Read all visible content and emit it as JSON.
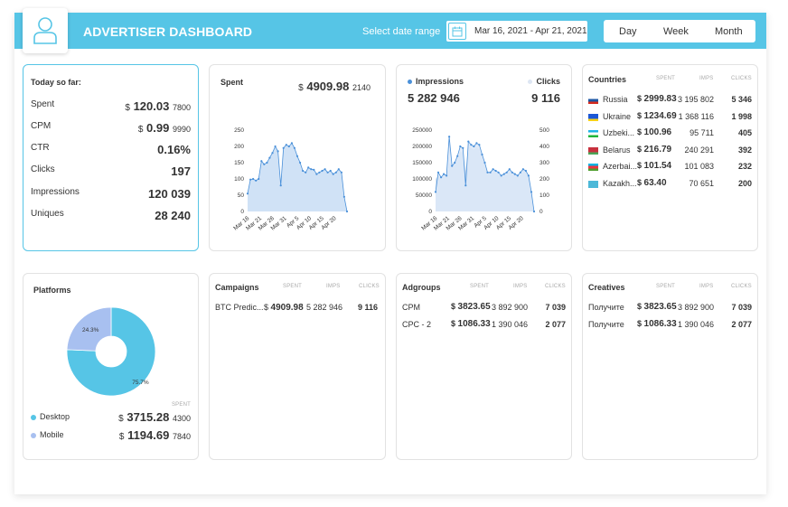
{
  "header": {
    "title": "ADVERTISER DASHBOARD",
    "date_label": "Select date range",
    "date_range": "Mar 16, 2021 - Apr 21, 2021",
    "periods": [
      "Day",
      "Week",
      "Month"
    ]
  },
  "today": {
    "title": "Today so far:",
    "rows": [
      {
        "label": "Spent",
        "currency": "$",
        "value": "120.03",
        "suffix": "7800"
      },
      {
        "label": "CPM",
        "currency": "$",
        "value": "0.99",
        "suffix": "9990"
      },
      {
        "label": "CTR",
        "value": "0.16%"
      },
      {
        "label": "Clicks",
        "value": "197"
      },
      {
        "label": "Impressions",
        "value": "120 039"
      },
      {
        "label": "Uniques",
        "value": "28 240"
      }
    ]
  },
  "spent": {
    "title": "Spent",
    "currency": "$",
    "value": "4909.98",
    "suffix": "2140"
  },
  "impressions": {
    "label": "Impressions",
    "value": "5 282 946",
    "clicks_label": "Clicks",
    "clicks_value": "9 116"
  },
  "countries": {
    "title": "Countries",
    "headers": [
      "SPENT",
      "IMPS",
      "CLICKS"
    ],
    "rows": [
      {
        "name": "Russia",
        "spent": "2999.83",
        "imps": "3 195 802",
        "clicks": "5 346"
      },
      {
        "name": "Ukraine",
        "spent": "1234.69",
        "imps": "1 368 116",
        "clicks": "1 998"
      },
      {
        "name": "Uzbeki...",
        "spent": "100.96",
        "imps": "95 711",
        "clicks": "405"
      },
      {
        "name": "Belarus",
        "spent": "216.79",
        "imps": "240 291",
        "clicks": "392"
      },
      {
        "name": "Azerbai...",
        "spent": "101.54",
        "imps": "101 083",
        "clicks": "232"
      },
      {
        "name": "Kazakh...",
        "spent": "63.40",
        "imps": "70 651",
        "clicks": "200"
      }
    ]
  },
  "platforms": {
    "title": "Platforms",
    "spent_header": "SPENT",
    "rows": [
      {
        "name": "Desktop",
        "currency": "$",
        "value": "3715.28",
        "suffix": "4300"
      },
      {
        "name": "Mobile",
        "currency": "$",
        "value": "1194.69",
        "suffix": "7840"
      }
    ]
  },
  "campaigns": {
    "title": "Campaigns",
    "headers": [
      "SPENT",
      "IMPS",
      "CLICKS"
    ],
    "rows": [
      {
        "name": "BTC Predic...",
        "spent": "4909.98",
        "imps": "5 282 946",
        "clicks": "9 116"
      }
    ]
  },
  "adgroups": {
    "title": "Adgroups",
    "headers": [
      "SPENT",
      "IMPS",
      "CLICKS"
    ],
    "rows": [
      {
        "name": "CPM",
        "spent": "3823.65",
        "imps": "3 892 900",
        "clicks": "7 039"
      },
      {
        "name": "CPC - 2",
        "spent": "1086.33",
        "imps": "1 390 046",
        "clicks": "2 077"
      }
    ]
  },
  "creatives": {
    "title": "Creatives",
    "headers": [
      "SPENT",
      "IMPS",
      "CLICKS"
    ],
    "rows": [
      {
        "name": "Получите ...",
        "spent": "3823.65",
        "imps": "3 892 900",
        "clicks": "7 039"
      },
      {
        "name": "Получите ...",
        "spent": "1086.33",
        "imps": "1 390 046",
        "clicks": "2 077"
      }
    ]
  },
  "colors": {
    "accent": "#56c5e6",
    "desktop": "#56c5e6",
    "mobile": "#a8c0f0",
    "spent_fill": "#c8ddf5",
    "spent_line": "#4a90d9",
    "imps_fill": "#dce8f8",
    "clicks_fill": "#c5d8ee"
  },
  "chart_data": [
    {
      "type": "area",
      "title": "Spent",
      "x_tick_labels": [
        "Mar 16",
        "Mar 21",
        "Mar 26",
        "Mar 31",
        "Apr 5",
        "Apr 10",
        "Apr 15",
        "Apr 20"
      ],
      "ylim": [
        0,
        250
      ],
      "y_ticks": [
        0,
        50,
        100,
        150,
        200,
        250
      ],
      "series": [
        {
          "values": [
            55,
            98,
            100,
            95,
            100,
            155,
            145,
            150,
            165,
            180,
            200,
            185,
            80,
            195,
            205,
            200,
            210,
            195,
            170,
            150,
            125,
            120,
            135,
            130,
            128,
            115,
            120,
            125,
            130,
            120,
            125,
            115,
            120,
            130,
            120,
            45,
            0
          ]
        }
      ]
    },
    {
      "type": "area",
      "series_left": "Impressions",
      "series_right": "Clicks",
      "x_tick_labels": [
        "Mar 16",
        "Mar 21",
        "Mar 26",
        "Mar 31",
        "Apr 5",
        "Apr 10",
        "Apr 15",
        "Apr 20"
      ],
      "ylim_left": [
        0,
        250000
      ],
      "y_ticks_left": [
        0,
        50000,
        100000,
        150000,
        200000,
        250000
      ],
      "ylim_right": [
        0,
        500
      ],
      "y_ticks_right": [
        0,
        100,
        200,
        300,
        400,
        500
      ],
      "series": [
        {
          "name": "Impressions",
          "values": [
            60000,
            120000,
            105000,
            115000,
            110000,
            230000,
            140000,
            150000,
            170000,
            200000,
            195000,
            80000,
            215000,
            205000,
            200000,
            210000,
            205000,
            175000,
            150000,
            120000,
            120000,
            130000,
            125000,
            120000,
            110000,
            115000,
            120000,
            130000,
            120000,
            115000,
            110000,
            120000,
            130000,
            125000,
            110000,
            60000,
            0
          ]
        },
        {
          "name": "Clicks",
          "values": [
            200,
            220,
            210,
            230,
            215,
            300,
            280,
            290,
            320,
            370,
            360,
            250,
            400,
            390,
            380,
            395,
            380,
            340,
            290,
            240,
            230,
            250,
            240,
            230,
            210,
            220,
            230,
            250,
            230,
            220,
            210,
            230,
            250,
            240,
            210,
            100,
            0
          ]
        }
      ]
    },
    {
      "type": "pie",
      "categories": [
        "Desktop",
        "Mobile"
      ],
      "values": [
        75.7,
        24.3
      ],
      "data_labels": [
        "75.7%",
        "24.3%"
      ]
    }
  ]
}
